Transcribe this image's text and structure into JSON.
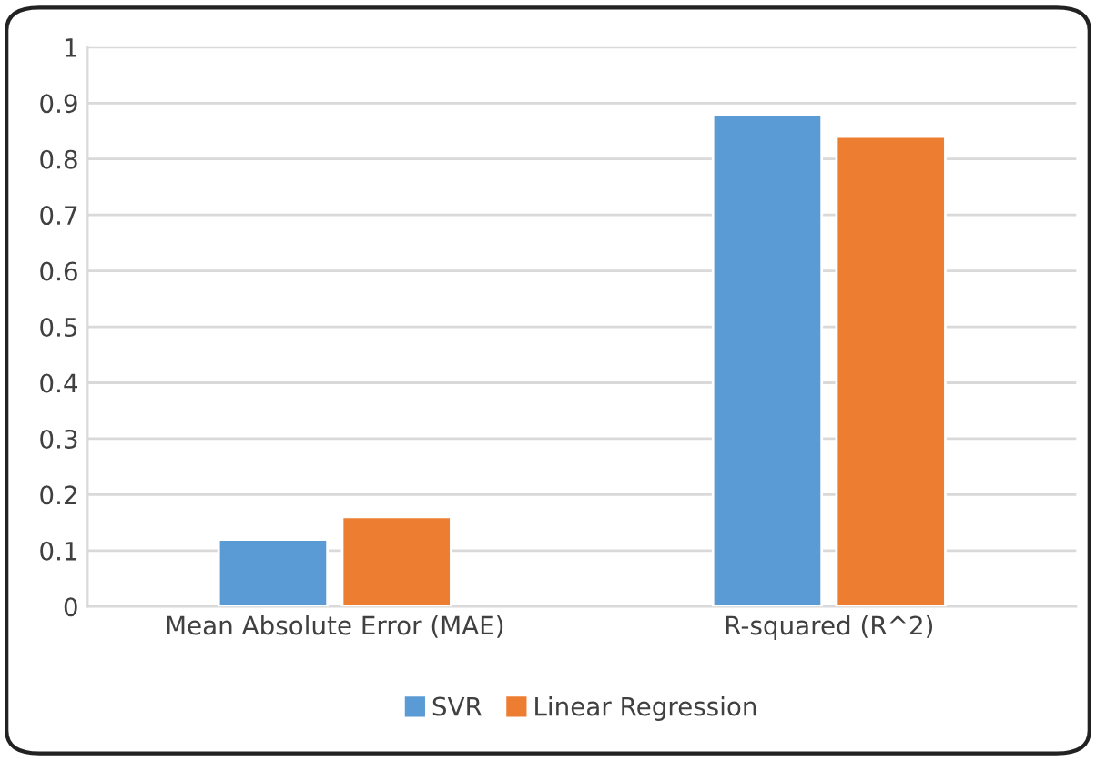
{
  "chart_data": {
    "type": "bar",
    "categories": [
      "Mean Absolute Error (MAE)",
      "R-squared (R^2)"
    ],
    "series": [
      {
        "name": "SVR",
        "color": "#5b9bd5",
        "values": [
          0.12,
          0.88
        ]
      },
      {
        "name": "Linear Regression",
        "color": "#ed7d31",
        "values": [
          0.16,
          0.84
        ]
      }
    ],
    "ylim": [
      0,
      1
    ],
    "yticks": [
      0,
      0.1,
      0.2,
      0.3,
      0.4,
      0.5,
      0.6,
      0.7,
      0.8,
      0.9,
      1
    ],
    "grid": "y",
    "legend": "bottom"
  }
}
